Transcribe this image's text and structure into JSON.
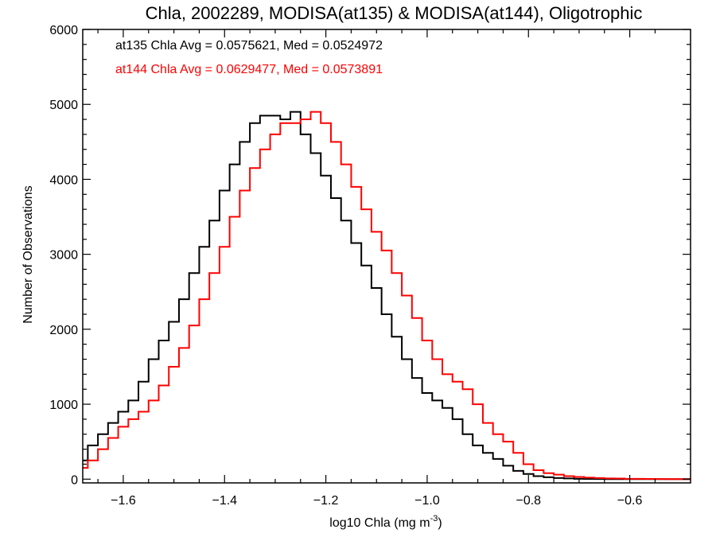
{
  "chart_data": {
    "type": "line",
    "style": "step",
    "title": "Chla, 2002289, MODISA(at135) & MODISA(at144), Oligotrophic",
    "xlabel_main": "log10 Chla (mg m",
    "xlabel_sup": "-3",
    "xlabel_end": ")",
    "ylabel": "Number of Observations",
    "xlim": [
      -1.68,
      -0.48
    ],
    "ylim": [
      -50,
      6000
    ],
    "xticks": [
      -1.6,
      -1.4,
      -1.2,
      -1.0,
      -0.8,
      -0.6
    ],
    "xtick_labels": [
      "−1.6",
      "−1.4",
      "−1.2",
      "−1.0",
      "−0.8",
      "−0.6"
    ],
    "yticks": [
      0,
      1000,
      2000,
      3000,
      4000,
      5000,
      6000
    ],
    "ytick_labels": [
      "0",
      "1000",
      "2000",
      "3000",
      "4000",
      "5000",
      "6000"
    ],
    "grid": false,
    "annotations": [
      {
        "text": "at135 Chla Avg = 0.0575621, Med = 0.0524972",
        "color": "#000000"
      },
      {
        "text": "at144 Chla Avg = 0.0629477, Med = 0.0573891",
        "color": "#ff0000"
      }
    ],
    "series": [
      {
        "color": "#000000",
        "x": [
          -1.68,
          -1.66,
          -1.64,
          -1.62,
          -1.6,
          -1.58,
          -1.56,
          -1.54,
          -1.52,
          -1.5,
          -1.48,
          -1.46,
          -1.44,
          -1.42,
          -1.4,
          -1.38,
          -1.36,
          -1.34,
          -1.32,
          -1.3,
          -1.28,
          -1.26,
          -1.24,
          -1.22,
          -1.2,
          -1.18,
          -1.16,
          -1.14,
          -1.12,
          -1.1,
          -1.08,
          -1.06,
          -1.04,
          -1.02,
          -1.0,
          -0.98,
          -0.96,
          -0.94,
          -0.92,
          -0.9,
          -0.88,
          -0.86,
          -0.84,
          -0.82,
          -0.8,
          -0.78,
          -0.76,
          -0.74,
          -0.72,
          -0.7,
          -0.68,
          -0.66,
          -0.64,
          -0.62,
          -0.6,
          -0.58,
          -0.56,
          -0.54,
          -0.52,
          -0.5,
          -0.48
        ],
        "y": [
          250,
          450,
          600,
          750,
          900,
          1050,
          1300,
          1600,
          1850,
          2100,
          2400,
          2750,
          3100,
          3450,
          3850,
          4200,
          4500,
          4750,
          4850,
          4850,
          4800,
          4900,
          4600,
          4350,
          4050,
          3750,
          3450,
          3150,
          2850,
          2550,
          2200,
          1900,
          1600,
          1350,
          1150,
          1050,
          950,
          800,
          600,
          450,
          350,
          270,
          180,
          110,
          70,
          40,
          25,
          15,
          10,
          5,
          3,
          2,
          1,
          0,
          0,
          0,
          0,
          0,
          0,
          0,
          0
        ]
      },
      {
        "color": "#ff0000",
        "x": [
          -1.68,
          -1.66,
          -1.64,
          -1.62,
          -1.6,
          -1.58,
          -1.56,
          -1.54,
          -1.52,
          -1.5,
          -1.48,
          -1.46,
          -1.44,
          -1.42,
          -1.4,
          -1.38,
          -1.36,
          -1.34,
          -1.32,
          -1.3,
          -1.28,
          -1.26,
          -1.24,
          -1.22,
          -1.2,
          -1.18,
          -1.16,
          -1.14,
          -1.12,
          -1.1,
          -1.08,
          -1.06,
          -1.04,
          -1.02,
          -1.0,
          -0.98,
          -0.96,
          -0.94,
          -0.92,
          -0.9,
          -0.88,
          -0.86,
          -0.84,
          -0.82,
          -0.8,
          -0.78,
          -0.76,
          -0.74,
          -0.72,
          -0.7,
          -0.68,
          -0.66,
          -0.64,
          -0.62,
          -0.6,
          -0.58,
          -0.56,
          -0.54,
          -0.52,
          -0.5,
          -0.48
        ],
        "y": [
          150,
          250,
          400,
          550,
          700,
          800,
          900,
          1050,
          1250,
          1500,
          1750,
          2050,
          2400,
          2750,
          3100,
          3500,
          3850,
          4150,
          4400,
          4600,
          4750,
          4750,
          4800,
          4900,
          4750,
          4500,
          4200,
          3900,
          3600,
          3300,
          3050,
          2750,
          2450,
          2150,
          1850,
          1600,
          1400,
          1300,
          1200,
          1000,
          750,
          600,
          500,
          350,
          200,
          120,
          80,
          60,
          40,
          30,
          20,
          15,
          10,
          8,
          5,
          4,
          3,
          2,
          1,
          0,
          0
        ]
      }
    ]
  }
}
